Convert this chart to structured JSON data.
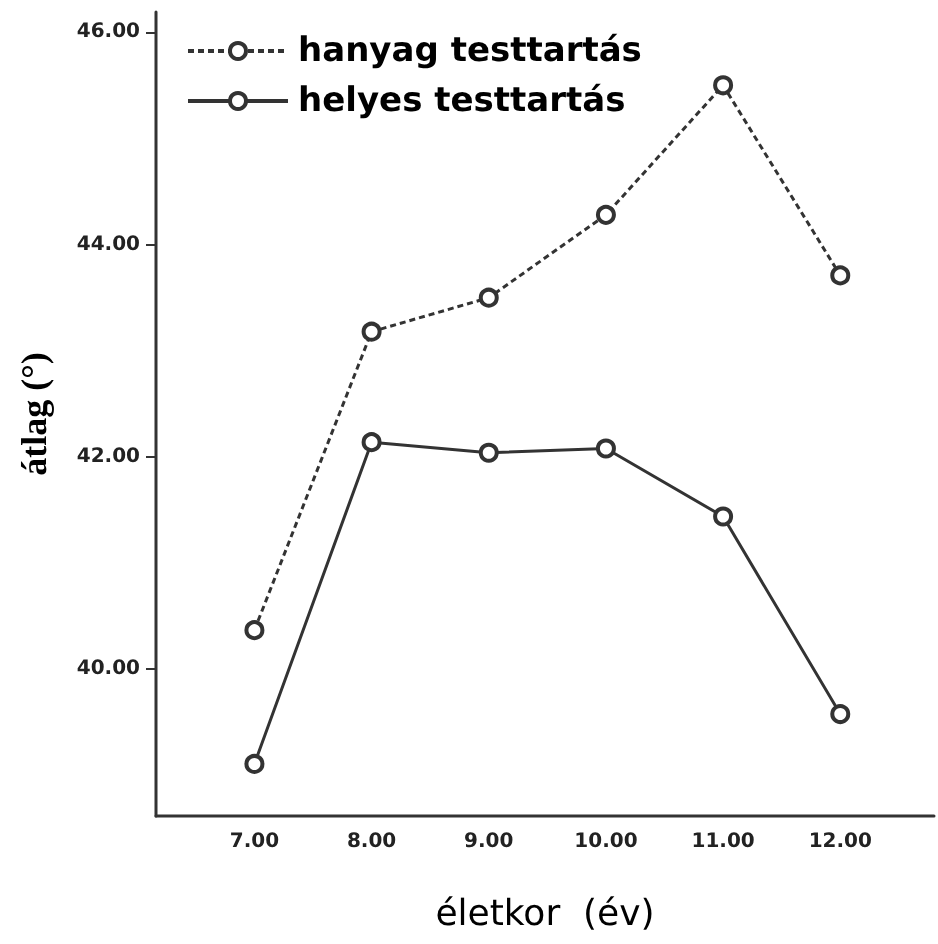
{
  "chart_data": {
    "type": "line",
    "xlabel": "életkor  (év)",
    "ylabel": "átlag (°)",
    "x": [
      7,
      8,
      9,
      10,
      11,
      12
    ],
    "series": [
      {
        "name": "hanyag testtartás",
        "color": "#333333",
        "line_style": "dashed",
        "values": [
          40.37,
          43.18,
          43.5,
          44.28,
          45.5,
          43.71
        ]
      },
      {
        "name": "helyes testtartás",
        "color": "#333333",
        "line_style": "solid",
        "values": [
          39.11,
          42.14,
          42.04,
          42.08,
          41.44,
          39.58
        ]
      }
    ],
    "xlim": [
      6.16,
      12.8
    ],
    "xticks": [
      {
        "value": 7,
        "label": "7.00"
      },
      {
        "value": 8,
        "label": "8.00"
      },
      {
        "value": 9,
        "label": "9.00"
      },
      {
        "value": 10,
        "label": "10.00"
      },
      {
        "value": 11,
        "label": "11.00"
      },
      {
        "value": 12,
        "label": "12.00"
      }
    ],
    "ylim": [
      38.62,
      46.19
    ],
    "yticks": [
      {
        "value": 40,
        "label": "40.00"
      },
      {
        "value": 42,
        "label": "42.00"
      },
      {
        "value": 44,
        "label": "44.00"
      },
      {
        "value": 46,
        "label": "46.00"
      }
    ],
    "marker": "circle",
    "grid": false,
    "legend": "top left"
  }
}
